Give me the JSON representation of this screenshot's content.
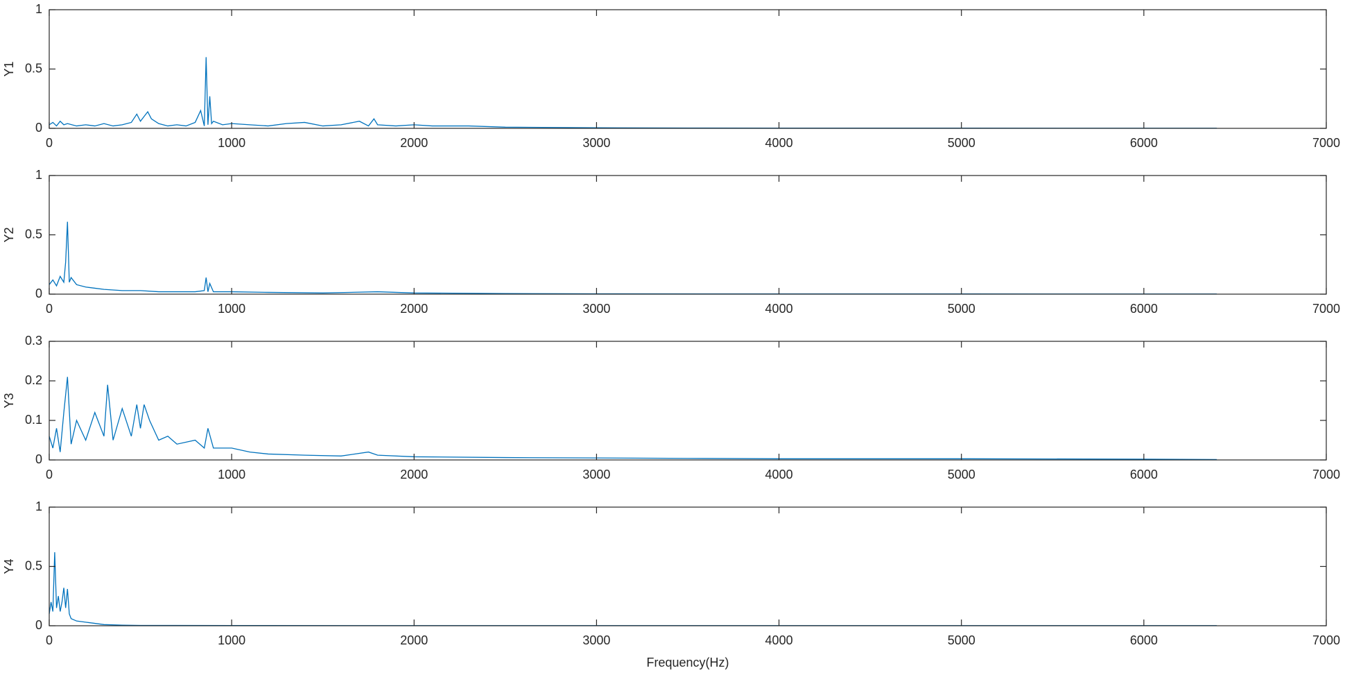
{
  "chart_data": [
    {
      "type": "line",
      "ylabel": "Y1",
      "xlim": [
        0,
        7000
      ],
      "xticks": [
        0,
        1000,
        2000,
        3000,
        4000,
        5000,
        6000,
        7000
      ],
      "ylim": [
        0,
        1
      ],
      "yticks": [
        0,
        0.5,
        1
      ],
      "color": "#0072BD",
      "x": [
        0,
        20,
        40,
        60,
        80,
        100,
        150,
        200,
        250,
        300,
        350,
        400,
        450,
        480,
        500,
        520,
        540,
        560,
        600,
        650,
        700,
        750,
        800,
        830,
        850,
        860,
        870,
        880,
        890,
        900,
        950,
        1000,
        1100,
        1200,
        1300,
        1400,
        1500,
        1600,
        1700,
        1750,
        1780,
        1800,
        1900,
        2000,
        2100,
        2200,
        2300,
        2500,
        3000,
        3500,
        4000,
        5000,
        6000,
        6400
      ],
      "values": [
        0.03,
        0.05,
        0.02,
        0.06,
        0.03,
        0.04,
        0.02,
        0.03,
        0.02,
        0.04,
        0.02,
        0.03,
        0.05,
        0.12,
        0.06,
        0.1,
        0.14,
        0.08,
        0.04,
        0.02,
        0.03,
        0.02,
        0.05,
        0.15,
        0.02,
        0.6,
        0.03,
        0.27,
        0.04,
        0.06,
        0.03,
        0.04,
        0.03,
        0.02,
        0.04,
        0.05,
        0.02,
        0.03,
        0.06,
        0.02,
        0.08,
        0.03,
        0.02,
        0.03,
        0.02,
        0.02,
        0.02,
        0.01,
        0.005,
        0.003,
        0.002,
        0.002,
        0.001,
        0.001
      ]
    },
    {
      "type": "line",
      "ylabel": "Y2",
      "xlim": [
        0,
        7000
      ],
      "xticks": [
        0,
        1000,
        2000,
        3000,
        4000,
        5000,
        6000,
        7000
      ],
      "ylim": [
        0,
        1
      ],
      "yticks": [
        0,
        0.5,
        1
      ],
      "color": "#0072BD",
      "x": [
        0,
        20,
        40,
        60,
        80,
        90,
        100,
        110,
        120,
        150,
        200,
        250,
        300,
        400,
        500,
        600,
        700,
        800,
        850,
        860,
        870,
        880,
        900,
        1000,
        1200,
        1500,
        1800,
        2000,
        2500,
        3000,
        4000,
        5000,
        6000,
        6400
      ],
      "values": [
        0.08,
        0.12,
        0.07,
        0.15,
        0.1,
        0.27,
        0.61,
        0.1,
        0.14,
        0.08,
        0.06,
        0.05,
        0.04,
        0.03,
        0.03,
        0.02,
        0.02,
        0.02,
        0.03,
        0.14,
        0.02,
        0.09,
        0.02,
        0.02,
        0.015,
        0.01,
        0.02,
        0.01,
        0.005,
        0.003,
        0.002,
        0.002,
        0.001,
        0.001
      ]
    },
    {
      "type": "line",
      "ylabel": "Y3",
      "xlim": [
        0,
        7000
      ],
      "xticks": [
        0,
        1000,
        2000,
        3000,
        4000,
        5000,
        6000,
        7000
      ],
      "ylim": [
        0,
        0.3
      ],
      "yticks": [
        0,
        0.1,
        0.2,
        0.3
      ],
      "color": "#0072BD",
      "x": [
        0,
        20,
        40,
        60,
        80,
        100,
        120,
        150,
        200,
        250,
        300,
        320,
        350,
        400,
        450,
        480,
        500,
        520,
        550,
        600,
        650,
        700,
        800,
        850,
        870,
        900,
        1000,
        1100,
        1200,
        1400,
        1600,
        1750,
        1800,
        2000,
        2500,
        3000,
        3500,
        4000,
        5000,
        6000,
        6400
      ],
      "values": [
        0.06,
        0.03,
        0.08,
        0.02,
        0.12,
        0.21,
        0.04,
        0.1,
        0.05,
        0.12,
        0.06,
        0.19,
        0.05,
        0.13,
        0.06,
        0.14,
        0.08,
        0.14,
        0.1,
        0.05,
        0.06,
        0.04,
        0.05,
        0.03,
        0.08,
        0.03,
        0.03,
        0.02,
        0.015,
        0.012,
        0.01,
        0.02,
        0.012,
        0.008,
        0.006,
        0.005,
        0.004,
        0.003,
        0.003,
        0.002,
        0.001
      ]
    },
    {
      "type": "line",
      "ylabel": "Y4",
      "xlabel": "Frequency(Hz)",
      "xlim": [
        0,
        7000
      ],
      "xticks": [
        0,
        1000,
        2000,
        3000,
        4000,
        5000,
        6000,
        7000
      ],
      "ylim": [
        0,
        1
      ],
      "yticks": [
        0,
        0.5,
        1
      ],
      "color": "#0072BD",
      "x": [
        0,
        10,
        20,
        30,
        40,
        50,
        60,
        70,
        80,
        90,
        100,
        110,
        120,
        150,
        200,
        250,
        300,
        400,
        500,
        1000,
        2000,
        3000,
        4000,
        5000,
        6000,
        6400
      ],
      "values": [
        0.1,
        0.2,
        0.12,
        0.62,
        0.15,
        0.25,
        0.12,
        0.2,
        0.32,
        0.15,
        0.31,
        0.1,
        0.06,
        0.04,
        0.03,
        0.02,
        0.01,
        0.005,
        0.003,
        0.002,
        0.001,
        0.001,
        0.001,
        0.001,
        0.001,
        0.001
      ]
    }
  ]
}
